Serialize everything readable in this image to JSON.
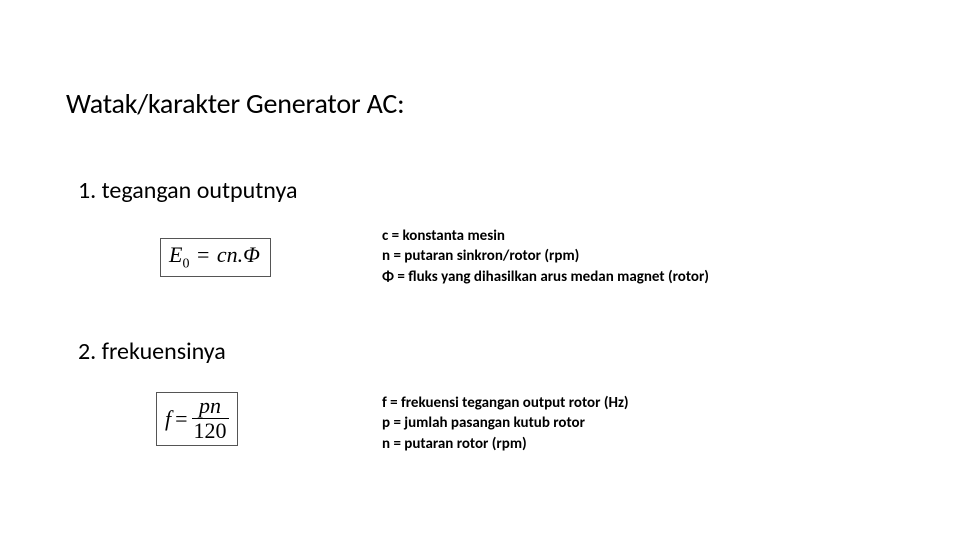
{
  "title": "Watak/karakter Generator AC:",
  "item1": {
    "label": "1.  tegangan outputnya",
    "formula": {
      "lhs_var": "E",
      "lhs_sub": "0",
      "rhs": "cn.Φ"
    },
    "defs": [
      "c = konstanta mesin",
      "n = putaran sinkron/rotor (rpm)",
      "Φ = fluks yang dihasilkan arus medan magnet (rotor)"
    ]
  },
  "item2": {
    "label": "2.   frekuensinya",
    "formula": {
      "lhs": "f",
      "num": "pn",
      "den": "120"
    },
    "defs": [
      "f  = frekuensi tegangan output rotor (Hz)",
      "p = jumlah pasangan kutub rotor",
      "n = putaran rotor (rpm)"
    ]
  },
  "colors": {
    "text": "#000000",
    "background": "#ffffff",
    "box_border": "#555555"
  },
  "typography": {
    "title_fontsize": 28,
    "item_fontsize": 24,
    "defs_fontsize": 15,
    "defs_weight": 600,
    "formula_font": "Times New Roman",
    "body_font": "Calibri"
  }
}
